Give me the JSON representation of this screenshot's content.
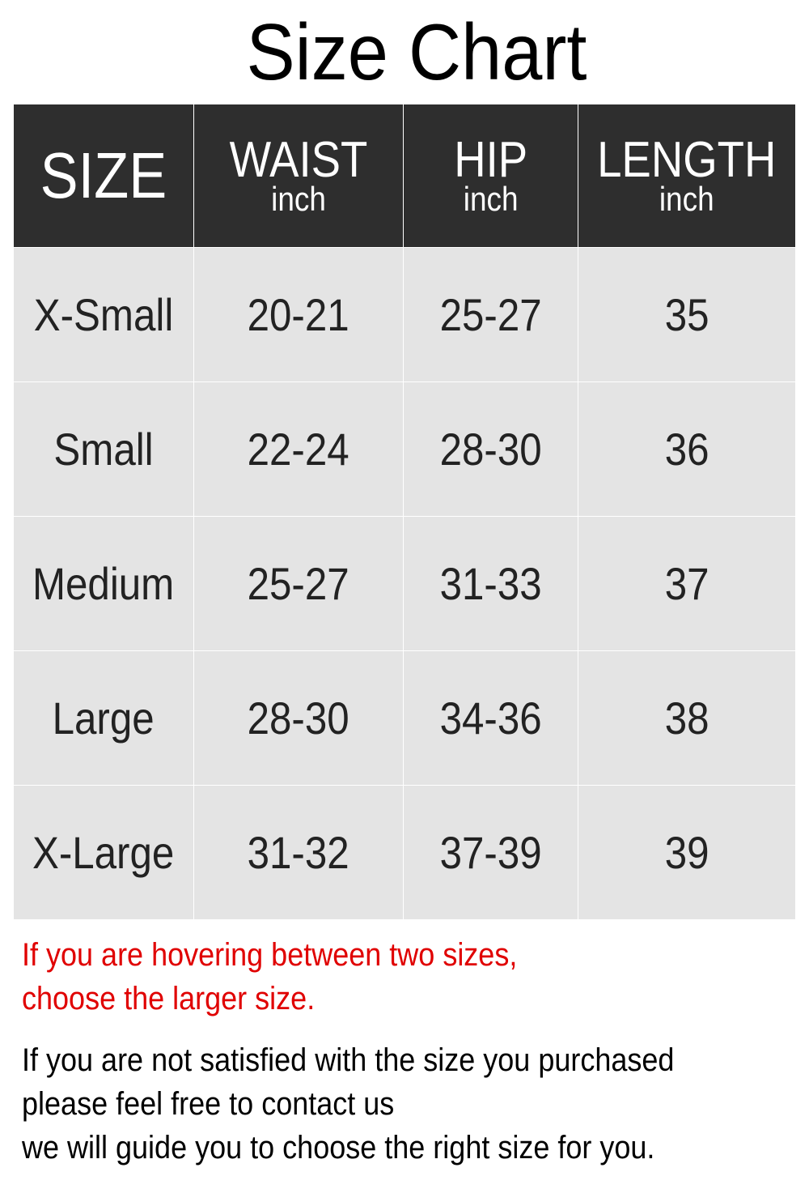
{
  "title": "Size Chart",
  "table": {
    "headers": [
      {
        "main": "SIZE",
        "sub": ""
      },
      {
        "main": "WAIST",
        "sub": "inch"
      },
      {
        "main": "HIP",
        "sub": "inch"
      },
      {
        "main": "LENGTH",
        "sub": "inch"
      }
    ],
    "rows": [
      [
        "X-Small",
        "20-21",
        "25-27",
        "35"
      ],
      [
        "Small",
        "22-24",
        "28-30",
        "36"
      ],
      [
        "Medium",
        "25-27",
        "31-33",
        "37"
      ],
      [
        "Large",
        "28-30",
        "34-36",
        "38"
      ],
      [
        "X-Large",
        "31-32",
        "37-39",
        "39"
      ]
    ]
  },
  "notes": {
    "red": [
      "If you are hovering between two sizes,",
      "choose the larger size."
    ],
    "black": [
      "If you are not satisfied with the size you purchased",
      "please feel free to contact us",
      "we will guide you to choose the right size for you."
    ]
  },
  "colors": {
    "header_bg": "#2e2e2e",
    "cell_bg": "#e4e4e4",
    "warning_text": "#e00000"
  }
}
